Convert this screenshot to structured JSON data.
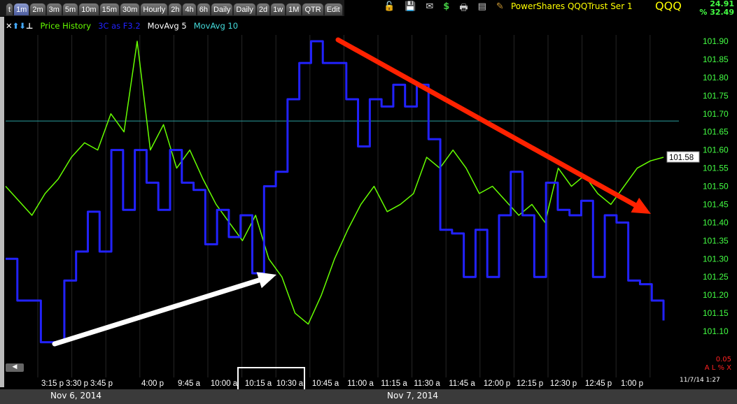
{
  "tabs": [
    "t",
    "1m",
    "2m",
    "3m",
    "5m",
    "10m",
    "15m",
    "30m",
    "Hourly",
    "2h",
    "4h",
    "6h",
    "Daily",
    "Daily",
    "2d",
    "1w",
    "1M",
    "QTR",
    "Edit"
  ],
  "active_tab": "1m",
  "toolbar_icons": [
    "unlock-icon",
    "save-icon",
    "mail-icon",
    "dollar-icon",
    "print-icon",
    "window-icon",
    "pencil-icon"
  ],
  "header": {
    "title": "PowerShares QQQTrust Ser 1",
    "symbol": "QQQ",
    "change1": "24.91",
    "change2": "% 32.49"
  },
  "legend": [
    {
      "label": "Price History",
      "color": "#66ff00"
    },
    {
      "label": "3C as F3.2",
      "color": "#2222ff"
    },
    {
      "label": "MovAvg 5",
      "color": "#ffffff"
    },
    {
      "label": "MovAvg 10",
      "color": "#44dddd"
    }
  ],
  "dates": [
    "Nov 6, 2014",
    "Nov 7, 2014"
  ],
  "timestamp": "11/7/14 1:27",
  "mini": {
    "value": "0.05",
    "buttons": "A L % X"
  },
  "chart_data": {
    "type": "line",
    "ylim": [
      101.05,
      101.92
    ],
    "yticks": [
      "101.90",
      "101.85",
      "101.80",
      "101.75",
      "101.70",
      "101.65",
      "101.60",
      "101.55",
      "101.50",
      "101.45",
      "101.40",
      "101.35",
      "101.30",
      "101.25",
      "101.20",
      "101.15",
      "101.10"
    ],
    "xticks": [
      "3:15 p",
      "3:30 p",
      "3:45 p",
      "4:00 p",
      "9:45 a",
      "10:00 a",
      "10:15 a",
      "10:30 a",
      "10:45 a",
      "11:00 a",
      "11:15 a",
      "11:30 a",
      "11:45 a",
      "12:00 p",
      "12:15 p",
      "12:30 p",
      "12:45 p",
      "1:00 p"
    ],
    "highlighted_ticks": [
      "10:15 a",
      "10:30 a"
    ],
    "current_price": "101.58",
    "reference_line": 101.68,
    "series": [
      {
        "name": "Price History",
        "color": "#66ff00",
        "values": [
          101.5,
          101.46,
          101.42,
          101.48,
          101.52,
          101.58,
          101.62,
          101.6,
          101.7,
          101.65,
          101.9,
          101.6,
          101.67,
          101.55,
          101.6,
          101.52,
          101.45,
          101.4,
          101.35,
          101.42,
          101.3,
          101.25,
          101.15,
          101.12,
          101.2,
          101.3,
          101.38,
          101.45,
          101.5,
          101.43,
          101.45,
          101.48,
          101.58,
          101.55,
          101.6,
          101.55,
          101.48,
          101.5,
          101.46,
          101.42,
          101.45,
          101.4,
          101.55,
          101.5,
          101.53,
          101.48,
          101.45,
          101.5,
          101.55,
          101.57,
          101.58
        ]
      },
      {
        "name": "3C as F3.2",
        "color": "#2222ff",
        "values": [
          101.3,
          101.185,
          101.185,
          101.07,
          101.07,
          101.24,
          101.32,
          101.43,
          101.32,
          101.6,
          101.435,
          101.6,
          101.51,
          101.435,
          101.6,
          101.51,
          101.49,
          101.34,
          101.435,
          101.36,
          101.42,
          101.26,
          101.5,
          101.54,
          101.74,
          101.84,
          101.9,
          101.84,
          101.84,
          101.74,
          101.61,
          101.74,
          101.72,
          101.78,
          101.72,
          101.78,
          101.63,
          101.38,
          101.37,
          101.25,
          101.38,
          101.25,
          101.42,
          101.54,
          101.42,
          101.25,
          101.51,
          101.435,
          101.42,
          101.46,
          101.25,
          101.42,
          101.4,
          101.24,
          101.23,
          101.185,
          101.13
        ]
      }
    ],
    "annotations": [
      {
        "type": "arrow",
        "color": "#ff2200"
      },
      {
        "type": "arrow",
        "color": "#ffffff"
      }
    ]
  }
}
